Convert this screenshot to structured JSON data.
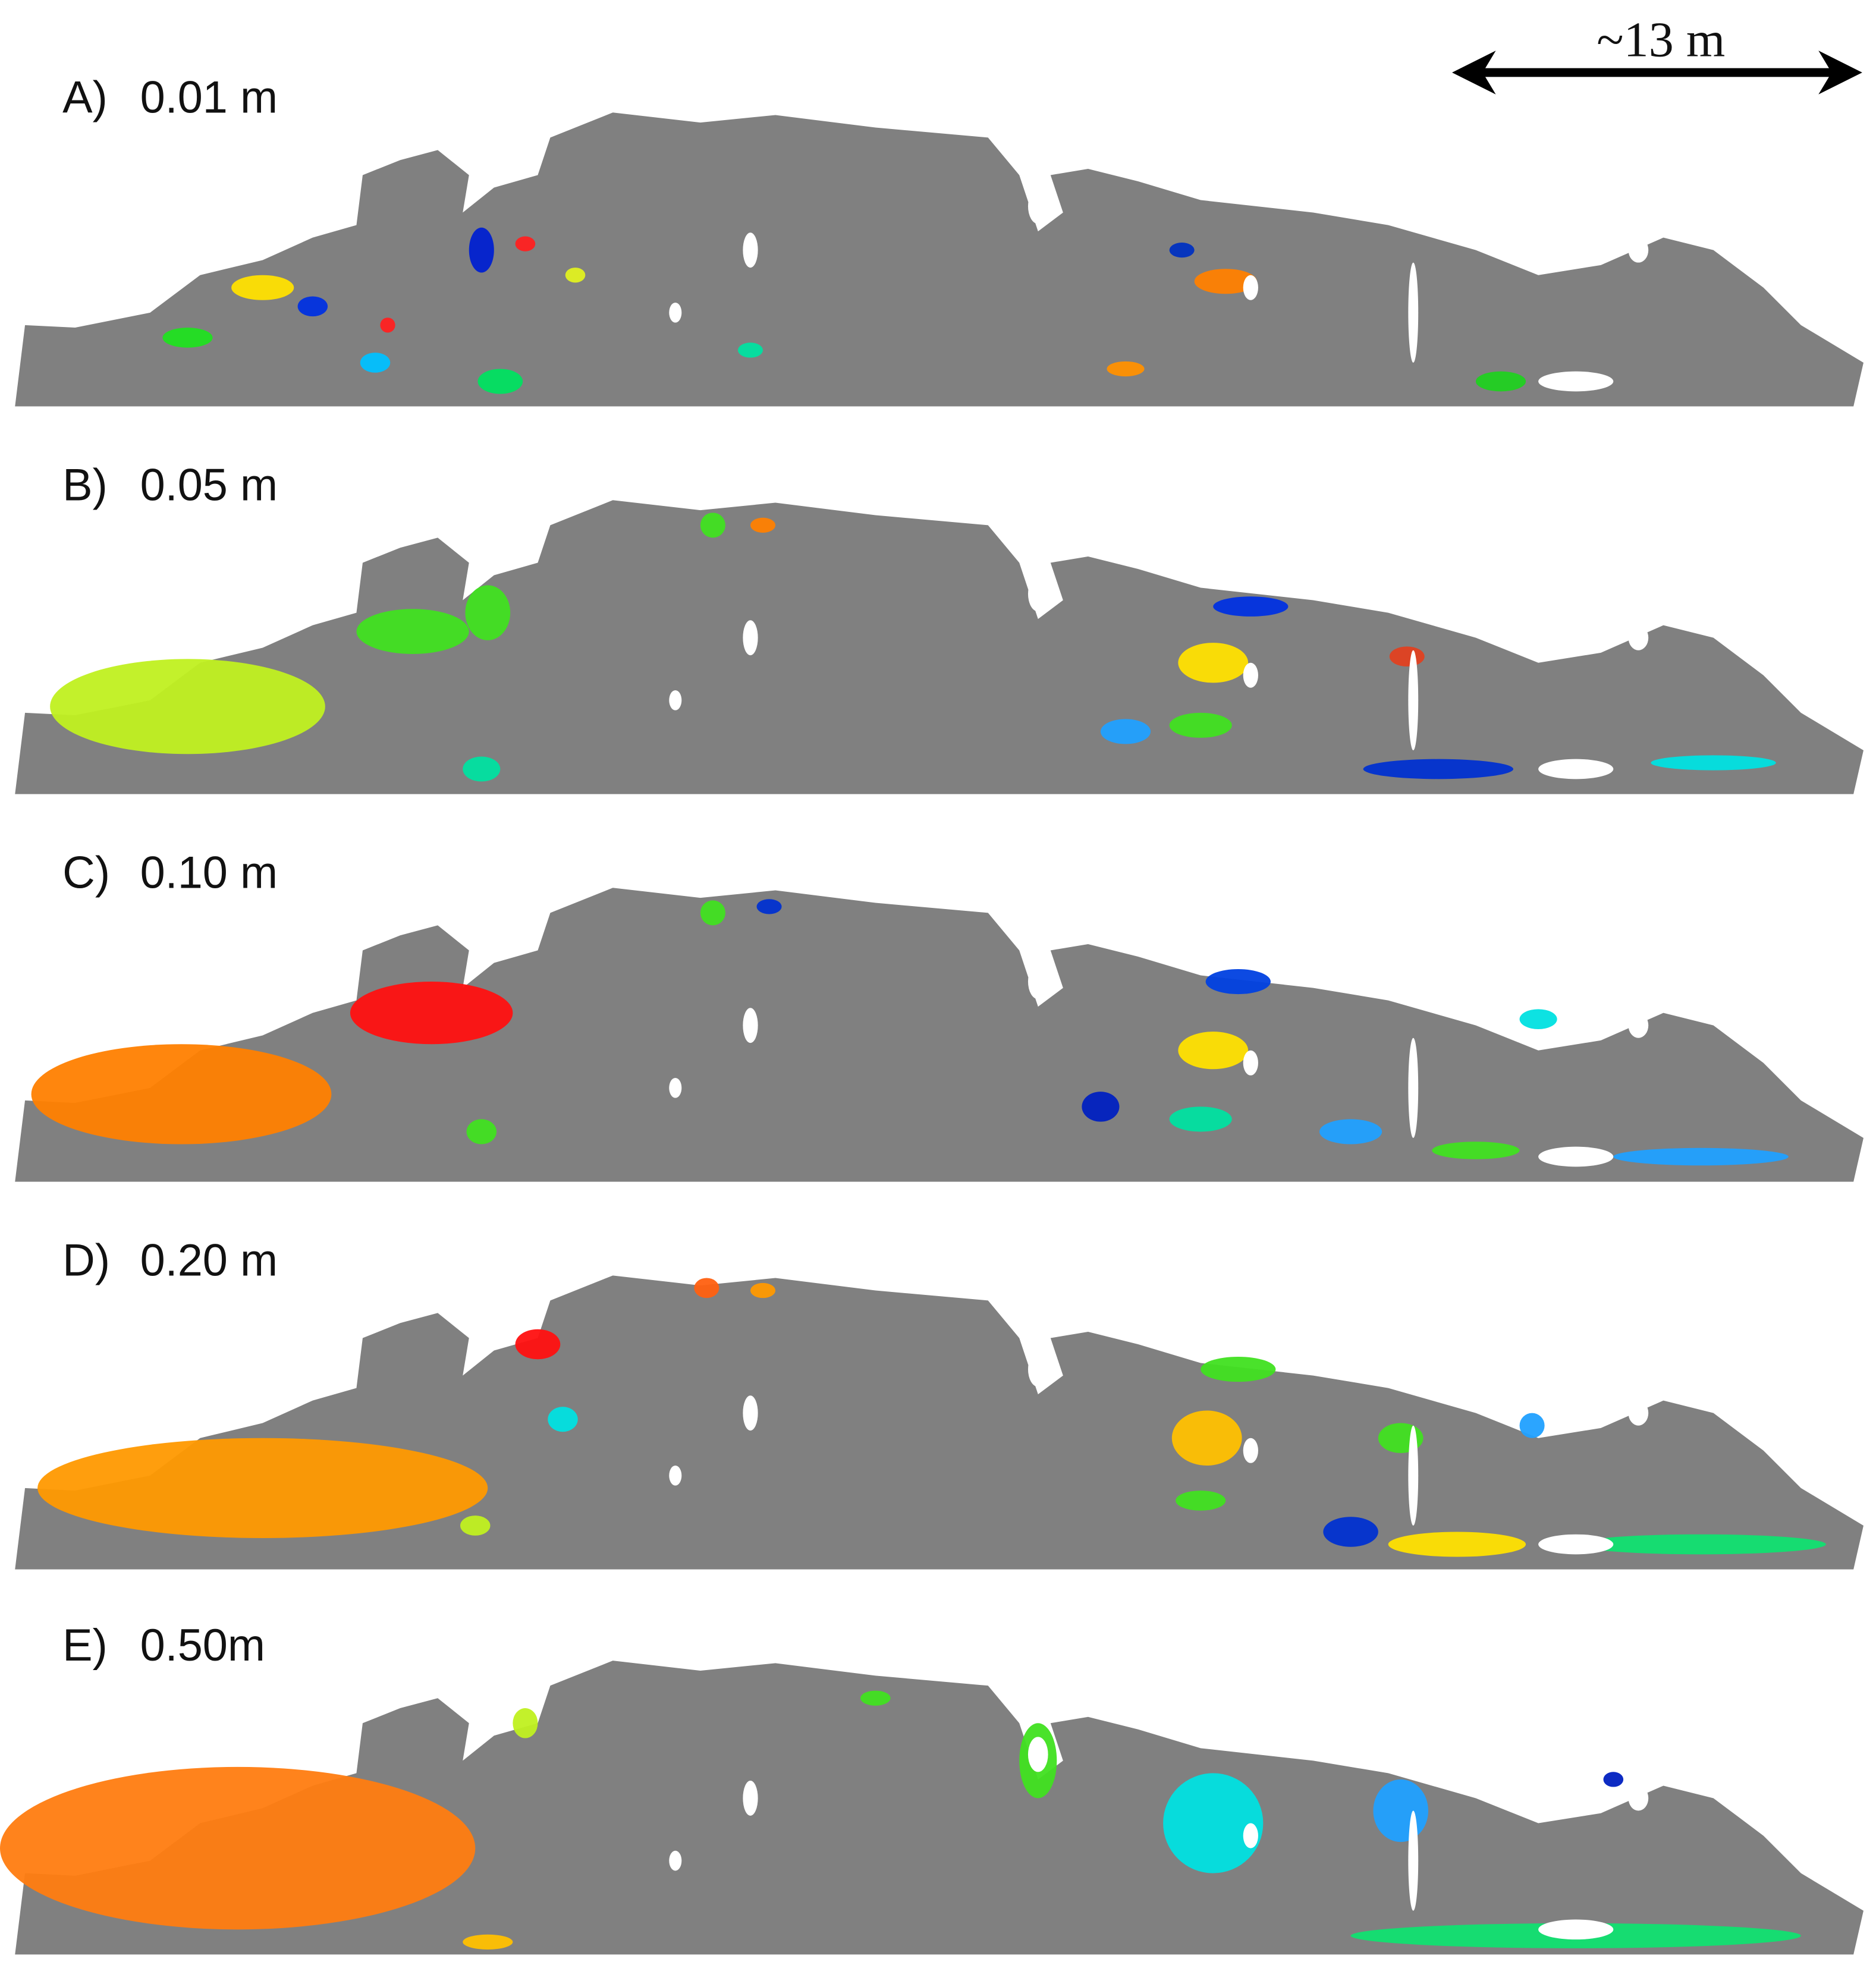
{
  "scale_bar": {
    "label": "~13 m"
  },
  "panels": [
    {
      "letter": "A)",
      "resolution": "0.01 m"
    },
    {
      "letter": "B)",
      "resolution": "0.05 m"
    },
    {
      "letter": "C)",
      "resolution": "0.10 m"
    },
    {
      "letter": "D)",
      "resolution": "0.20 m"
    },
    {
      "letter": "E)",
      "resolution": "0.50m"
    }
  ]
}
